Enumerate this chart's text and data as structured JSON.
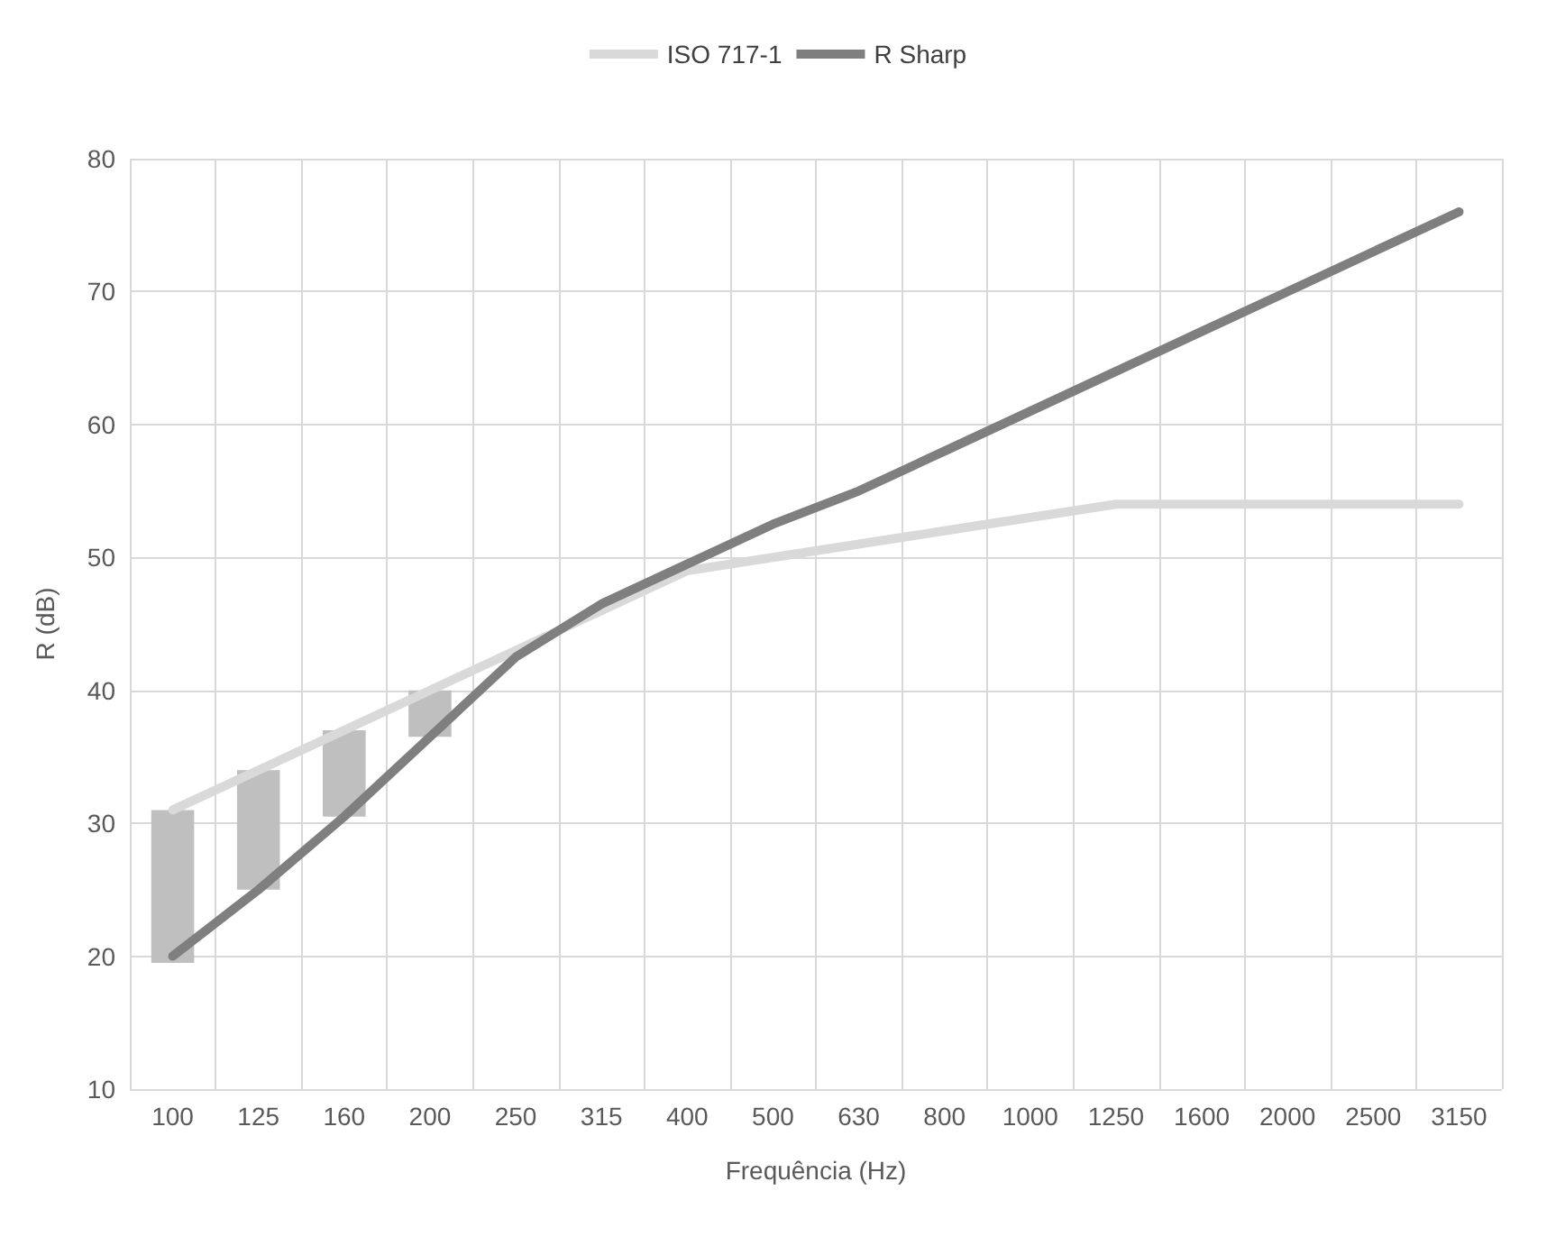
{
  "chart_data": {
    "type": "line",
    "xlabel": "Frequência (Hz)",
    "ylabel": "R (dB)",
    "categories": [
      "100",
      "125",
      "160",
      "200",
      "250",
      "315",
      "400",
      "500",
      "630",
      "800",
      "1000",
      "1250",
      "1600",
      "2000",
      "2500",
      "3150"
    ],
    "series": [
      {
        "name": "ISO 717-1",
        "color": "#d9d9d9",
        "values": [
          31,
          34,
          37,
          40,
          43,
          46,
          49,
          50,
          51,
          52,
          53,
          54,
          54,
          54,
          54,
          54
        ]
      },
      {
        "name": "R Sharp",
        "color": "#7f7f7f",
        "values": [
          20,
          25,
          30.5,
          36.5,
          42.5,
          46.5,
          49.5,
          52.5,
          55,
          58,
          61,
          64,
          67,
          70,
          73,
          76
        ]
      },
      {
        "type": "bar",
        "color": "#bfbfbf",
        "base": [
          19.5,
          25,
          30.5,
          36.5,
          null,
          null,
          null,
          null,
          null,
          null,
          null,
          null,
          null,
          null,
          null,
          null
        ],
        "values": [
          11.5,
          9,
          6.5,
          3.5,
          null,
          null,
          null,
          null,
          null,
          null,
          null,
          null,
          null,
          null,
          null,
          null
        ]
      }
    ],
    "ylim": [
      10,
      80
    ],
    "yticks": [
      10,
      20,
      30,
      40,
      50,
      60,
      70,
      80
    ],
    "grid": true,
    "legend": "top",
    "marker": "none",
    "line_style": "solid"
  }
}
